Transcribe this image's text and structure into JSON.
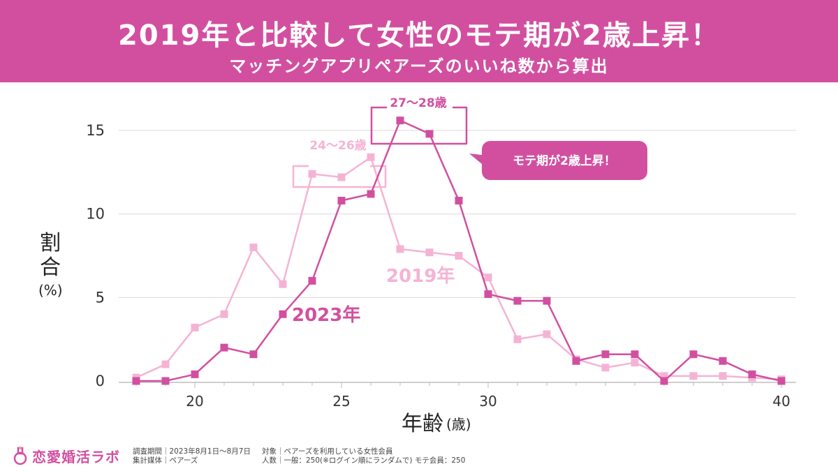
{
  "header": {
    "title": "2019年と比較して女性のモテ期が2歳上昇！",
    "subtitle": "マッチングアプリペアーズのいいね数から算出"
  },
  "colors": {
    "banner": "#d24fa0",
    "series_2023": "#d24fa0",
    "series_2019": "#f5b3d4",
    "grid": "#d9d9d9"
  },
  "chart_data": {
    "type": "line",
    "xlabel_main": "年齢",
    "xlabel_unit": "(歳)",
    "ylabel_main": "割\n合",
    "ylabel_unit": "(%)",
    "xlim": [
      18,
      40
    ],
    "ylim": [
      0,
      15
    ],
    "xticks": [
      20,
      25,
      30,
      40
    ],
    "yticks": [
      0,
      5,
      10,
      15
    ],
    "grid": true,
    "series": [
      {
        "name": "2023年",
        "x": [
          18,
          19,
          20,
          21,
          22,
          23,
          24,
          25,
          26,
          27,
          28,
          29,
          30,
          31,
          32,
          33,
          34,
          35,
          36,
          37,
          38,
          39,
          40
        ],
        "values": [
          0,
          0,
          0.4,
          2.0,
          1.6,
          4.0,
          6.0,
          10.8,
          11.2,
          15.6,
          14.8,
          10.8,
          5.2,
          4.8,
          4.8,
          1.2,
          1.6,
          1.6,
          0,
          1.6,
          1.2,
          0.4,
          0
        ]
      },
      {
        "name": "2019年",
        "x": [
          18,
          19,
          20,
          21,
          22,
          23,
          24,
          25,
          26,
          27,
          28,
          29,
          30,
          31,
          32,
          33,
          34,
          35,
          36,
          37,
          38,
          39,
          40
        ],
        "values": [
          0.2,
          1.0,
          3.2,
          4.0,
          8.0,
          5.8,
          12.4,
          12.2,
          13.4,
          7.9,
          7.7,
          7.5,
          6.2,
          2.5,
          2.8,
          1.3,
          0.8,
          1.1,
          0.3,
          0.3,
          0.3,
          0.2,
          0.1
        ]
      }
    ],
    "annotations": {
      "range_2019": "24〜26歳",
      "range_2023": "27〜28歳",
      "callout": "モテ期が2歳上昇！"
    }
  },
  "footer": {
    "logo_text": "恋愛婚活ラボ",
    "survey_period": "調査期間｜2023年8月1日〜8月7日",
    "media": "集計媒体｜ペアーズ",
    "target": "対象｜ペアーズを利用している女性会員",
    "count": "人数｜一般：250(※ログイン順にランダムで) モテ会員：250"
  }
}
